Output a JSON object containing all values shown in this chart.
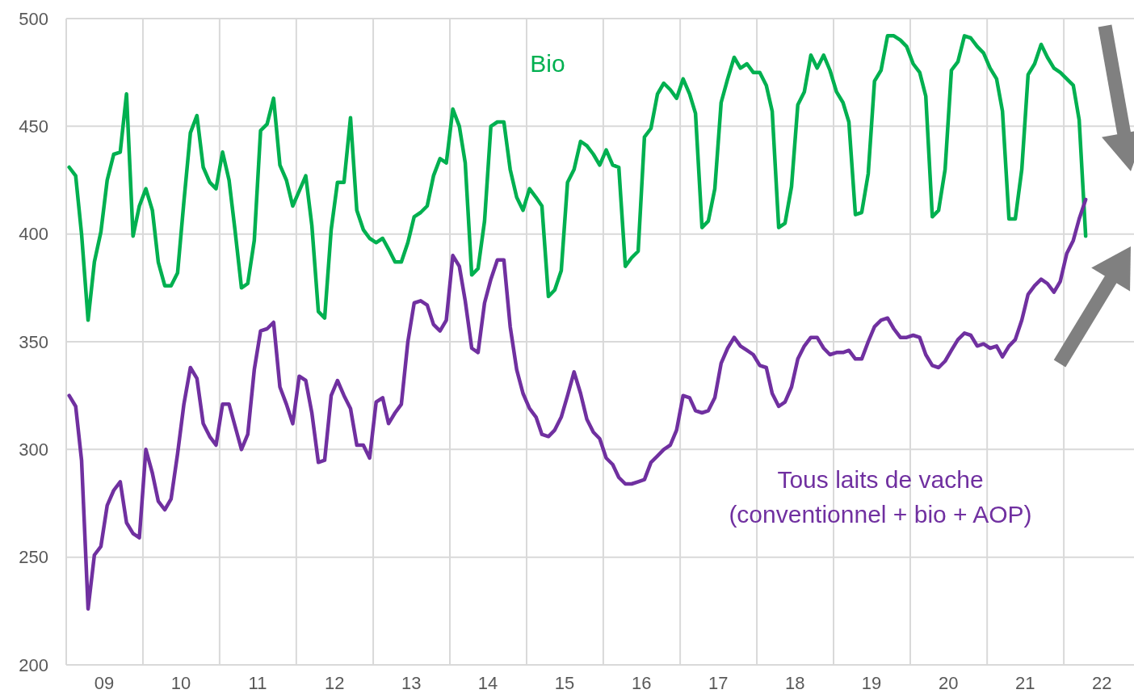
{
  "chart_data": {
    "type": "line",
    "x": [
      "2009-01-15",
      "2009-02-15",
      "2009-03-15",
      "2009-04-15",
      "2009-05-15",
      "2009-06-15",
      "2009-07-15",
      "2009-08-15",
      "2009-09-15",
      "2009-10-15",
      "2009-11-15",
      "2009-12-15",
      "2010-01-15",
      "2010-02-15",
      "2010-03-15",
      "2010-04-15",
      "2010-05-15",
      "2010-06-15",
      "2010-07-15",
      "2010-08-15",
      "2010-09-15",
      "2010-10-15",
      "2010-11-15",
      "2010-12-15",
      "2011-01-15",
      "2011-02-15",
      "2011-03-15",
      "2011-04-15",
      "2011-05-15",
      "2011-06-15",
      "2011-07-15",
      "2011-08-15",
      "2011-09-15",
      "2011-10-15",
      "2011-11-15",
      "2011-12-15",
      "2012-01-15",
      "2012-02-15",
      "2012-03-15",
      "2012-04-15",
      "2012-05-15",
      "2012-06-15",
      "2012-07-15",
      "2012-08-15",
      "2012-09-15",
      "2012-10-15",
      "2012-11-15",
      "2012-12-15",
      "2013-01-15",
      "2013-02-15",
      "2013-03-15",
      "2013-04-15",
      "2013-05-15",
      "2013-06-15",
      "2013-07-15",
      "2013-08-15",
      "2013-09-15",
      "2013-10-15",
      "2013-11-15",
      "2013-12-15",
      "2014-01-15",
      "2014-02-15",
      "2014-03-15",
      "2014-04-15",
      "2014-05-15",
      "2014-06-15",
      "2014-07-15",
      "2014-08-15",
      "2014-09-15",
      "2014-10-15",
      "2014-11-15",
      "2014-12-15",
      "2015-01-15",
      "2015-02-15",
      "2015-03-15",
      "2015-04-15",
      "2015-05-15",
      "2015-06-15",
      "2015-07-15",
      "2015-08-15",
      "2015-09-15",
      "2015-10-15",
      "2015-11-15",
      "2015-12-15",
      "2016-01-15",
      "2016-02-15",
      "2016-03-15",
      "2016-04-15",
      "2016-05-15",
      "2016-06-15",
      "2016-07-15",
      "2016-08-15",
      "2016-09-15",
      "2016-10-15",
      "2016-11-15",
      "2016-12-15",
      "2017-01-15",
      "2017-02-15",
      "2017-03-15",
      "2017-04-15",
      "2017-05-15",
      "2017-06-15",
      "2017-07-15",
      "2017-08-15",
      "2017-09-15",
      "2017-10-15",
      "2017-11-15",
      "2017-12-15",
      "2018-01-15",
      "2018-02-15",
      "2018-03-15",
      "2018-04-15",
      "2018-05-15",
      "2018-06-15",
      "2018-07-15",
      "2018-08-15",
      "2018-09-15",
      "2018-10-15",
      "2018-11-15",
      "2018-12-15",
      "2019-01-15",
      "2019-02-15",
      "2019-03-15",
      "2019-04-15",
      "2019-05-15",
      "2019-06-15",
      "2019-07-15",
      "2019-08-15",
      "2019-09-15",
      "2019-10-15",
      "2019-11-15",
      "2019-12-15",
      "2020-01-15",
      "2020-02-15",
      "2020-03-15",
      "2020-04-15",
      "2020-05-15",
      "2020-06-15",
      "2020-07-15",
      "2020-08-15",
      "2020-09-15",
      "2020-10-15",
      "2020-11-15",
      "2020-12-15",
      "2021-01-15",
      "2021-02-15",
      "2021-03-15",
      "2021-04-15",
      "2021-05-15",
      "2021-06-15",
      "2021-07-15",
      "2021-08-15",
      "2021-09-15",
      "2021-10-15",
      "2021-11-15",
      "2021-12-15",
      "2022-01-15",
      "2022-02-15",
      "2022-03-15",
      "2022-04-15"
    ],
    "series": [
      {
        "name": "Bio",
        "color": "#00b050",
        "values": [
          431,
          427,
          400,
          360,
          387,
          401,
          425,
          437,
          438,
          465,
          399,
          413,
          421,
          411,
          387,
          376,
          376,
          382,
          415,
          447,
          455,
          431,
          424,
          421,
          438,
          425,
          402,
          375,
          377,
          397,
          448,
          451,
          463,
          432,
          425,
          413,
          420,
          427,
          404,
          364,
          361,
          402,
          424,
          424,
          454,
          411,
          402,
          398,
          396,
          398,
          393,
          387,
          387,
          396,
          408,
          410,
          413,
          427,
          435,
          433,
          458,
          450,
          433,
          381,
          384,
          406,
          450,
          452,
          452,
          430,
          417,
          411,
          421,
          417,
          413,
          371,
          374,
          383,
          424,
          430,
          443,
          441,
          437,
          432,
          439,
          432,
          431,
          385,
          389,
          392,
          445,
          449,
          465,
          470,
          467,
          463,
          472,
          465,
          456,
          403,
          406,
          421,
          461,
          472,
          482,
          477,
          479,
          475,
          475,
          469,
          457,
          403,
          405,
          422,
          460,
          466,
          483,
          477,
          483,
          476,
          466,
          461,
          452,
          409,
          410,
          428,
          471,
          476,
          492,
          492,
          490,
          487,
          479,
          475,
          464,
          408,
          411,
          430,
          476,
          480,
          492,
          491,
          487,
          484,
          477,
          472,
          457,
          407,
          407,
          430,
          474,
          479,
          488,
          482,
          477,
          475,
          472,
          469,
          453,
          399
        ]
      },
      {
        "name": "Tous laits de vache\n(conventionnel + bio + AOP)",
        "color": "#7030a0",
        "values": [
          325,
          320,
          295,
          226,
          251,
          255,
          274,
          281,
          285,
          266,
          261,
          259,
          300,
          289,
          276,
          272,
          277,
          298,
          321,
          338,
          333,
          312,
          306,
          302,
          321,
          321,
          311,
          300,
          307,
          337,
          355,
          356,
          359,
          329,
          321,
          312,
          334,
          332,
          317,
          294,
          295,
          325,
          332,
          325,
          319,
          302,
          302,
          296,
          322,
          324,
          312,
          317,
          321,
          350,
          368,
          369,
          367,
          358,
          355,
          360,
          390,
          385,
          369,
          347,
          345,
          368,
          379,
          388,
          388,
          357,
          337,
          326,
          319,
          315,
          307,
          306,
          309,
          315,
          325,
          336,
          326,
          314,
          308,
          305,
          296,
          293,
          287,
          284,
          284,
          285,
          286,
          294,
          297,
          300,
          302,
          309,
          325,
          324,
          318,
          317,
          318,
          324,
          340,
          347,
          352,
          348,
          346,
          344,
          339,
          338,
          326,
          320,
          322,
          329,
          342,
          348,
          352,
          352,
          347,
          344,
          345,
          345,
          346,
          342,
          342,
          350,
          357,
          360,
          361,
          356,
          352,
          352,
          353,
          352,
          344,
          339,
          338,
          341,
          346,
          351,
          354,
          353,
          348,
          349,
          347,
          348,
          343,
          348,
          351,
          360,
          372,
          376,
          379,
          377,
          373,
          378,
          391,
          397,
          407,
          416
        ]
      }
    ],
    "xlim": [
      "2009-01-01",
      "2022-12-01"
    ],
    "xticks": [
      {
        "value": "2009-07-01",
        "label": "09"
      },
      {
        "value": "2010-01-01",
        "label": null
      },
      {
        "value": "2010-07-01",
        "label": "10"
      },
      {
        "value": "2011-01-01",
        "label": null
      },
      {
        "value": "2011-07-01",
        "label": "11"
      },
      {
        "value": "2012-01-01",
        "label": null
      },
      {
        "value": "2012-07-01",
        "label": "12"
      },
      {
        "value": "2013-01-01",
        "label": null
      },
      {
        "value": "2013-07-01",
        "label": "13"
      },
      {
        "value": "2014-01-01",
        "label": null
      },
      {
        "value": "2014-07-01",
        "label": "14"
      },
      {
        "value": "2015-01-01",
        "label": null
      },
      {
        "value": "2015-07-01",
        "label": "15"
      },
      {
        "value": "2016-01-01",
        "label": null
      },
      {
        "value": "2016-07-01",
        "label": "16"
      },
      {
        "value": "2017-01-01",
        "label": null
      },
      {
        "value": "2017-07-01",
        "label": "17"
      },
      {
        "value": "2018-01-01",
        "label": null
      },
      {
        "value": "2018-07-01",
        "label": "18"
      },
      {
        "value": "2019-01-01",
        "label": null
      },
      {
        "value": "2019-07-01",
        "label": "19"
      },
      {
        "value": "2020-01-01",
        "label": null
      },
      {
        "value": "2020-07-01",
        "label": "20"
      },
      {
        "value": "2021-01-01",
        "label": null
      },
      {
        "value": "2021-07-01",
        "label": "21"
      },
      {
        "value": "2022-01-01",
        "label": null
      },
      {
        "value": "2022-07-01",
        "label": "22"
      }
    ],
    "ylim": [
      200,
      500
    ],
    "yticks": [
      200,
      250,
      300,
      350,
      400,
      450,
      500
    ],
    "grid": true,
    "legend": false,
    "marker": "none",
    "line_style": "solid"
  }
}
